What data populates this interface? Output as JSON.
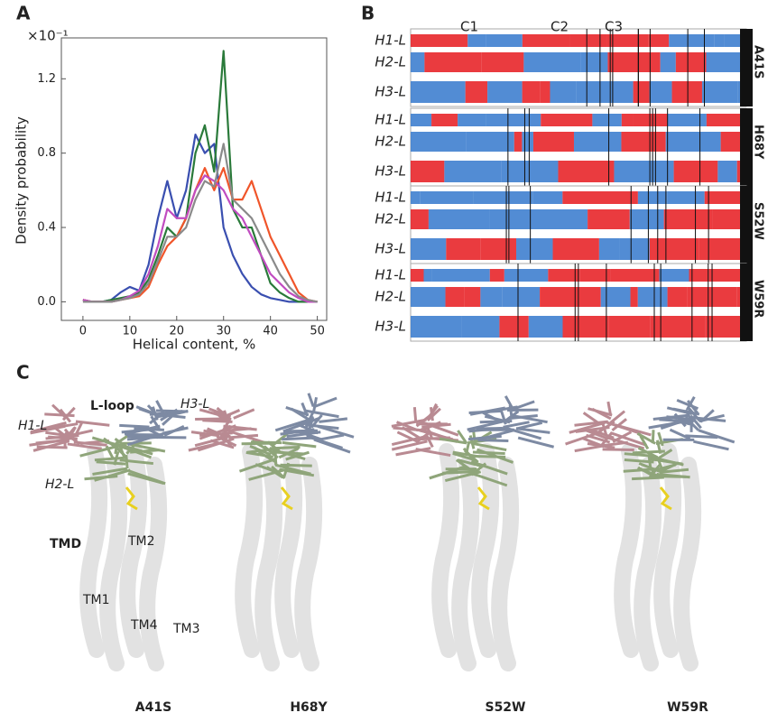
{
  "panel_labels": {
    "a": "A",
    "b": "B",
    "c": "C"
  },
  "chart_data": {
    "type": "line",
    "xlabel": "Helical content, %",
    "ylabel": "Density probability",
    "multiplier": "×10⁻¹",
    "x": [
      0,
      2,
      4,
      6,
      8,
      10,
      12,
      14,
      16,
      18,
      20,
      22,
      24,
      26,
      28,
      30,
      32,
      34,
      36,
      38,
      40,
      42,
      44,
      46,
      48,
      50
    ],
    "xlim": [
      -4.6,
      52
    ],
    "xticks": [
      0,
      10,
      20,
      30,
      40,
      50
    ],
    "ylim": [
      -0.1,
      1.42
    ],
    "yticks": [
      {
        "value": 0,
        "label": "0.0"
      },
      0.4,
      0.8,
      1.2
    ],
    "series": [
      {
        "color": "#3a4fb0",
        "values": [
          0.01,
          0,
          0,
          0.01,
          0.05,
          0.08,
          0.06,
          0.2,
          0.45,
          0.65,
          0.45,
          0.6,
          0.9,
          0.8,
          0.85,
          0.4,
          0.25,
          0.15,
          0.08,
          0.04,
          0.02,
          0.01,
          0,
          0,
          0,
          0
        ]
      },
      {
        "color": "#2a7a3a",
        "values": [
          0.01,
          0,
          0,
          0.01,
          0.02,
          0.03,
          0.05,
          0.12,
          0.25,
          0.4,
          0.35,
          0.45,
          0.8,
          0.95,
          0.7,
          1.35,
          0.5,
          0.4,
          0.4,
          0.25,
          0.1,
          0.05,
          0.02,
          0,
          0,
          0
        ]
      },
      {
        "color": "#f0552a",
        "values": [
          0.01,
          0,
          0,
          0,
          0.01,
          0.02,
          0.03,
          0.08,
          0.2,
          0.3,
          0.35,
          0.45,
          0.6,
          0.72,
          0.6,
          0.72,
          0.55,
          0.55,
          0.65,
          0.5,
          0.35,
          0.25,
          0.15,
          0.05,
          0.01,
          0
        ]
      },
      {
        "color": "#c04cc0",
        "values": [
          0.01,
          0,
          0,
          0,
          0.01,
          0.03,
          0.06,
          0.15,
          0.3,
          0.5,
          0.45,
          0.45,
          0.6,
          0.68,
          0.65,
          0.6,
          0.5,
          0.45,
          0.35,
          0.25,
          0.15,
          0.1,
          0.05,
          0.02,
          0,
          0
        ]
      },
      {
        "color": "#8a8a8a",
        "values": [
          0,
          0,
          0,
          0,
          0.01,
          0.02,
          0.04,
          0.1,
          0.22,
          0.35,
          0.35,
          0.4,
          0.55,
          0.65,
          0.62,
          0.85,
          0.55,
          0.5,
          0.45,
          0.35,
          0.25,
          0.15,
          0.08,
          0.03,
          0.01,
          0
        ]
      }
    ]
  },
  "panel_b": {
    "clusters": [
      "C1",
      "C2",
      "C3"
    ],
    "blocks": [
      {
        "mutant": "A41S",
        "rows": [
          "H1-L",
          "H2-L",
          "H3-L"
        ]
      },
      {
        "mutant": "H68Y",
        "rows": [
          "H1-L",
          "H2-L",
          "H3-L"
        ]
      },
      {
        "mutant": "S52W",
        "rows": [
          "H1-L",
          "H2-L",
          "H3-L"
        ]
      },
      {
        "mutant": "W59R",
        "rows": [
          "H1-L",
          "H2-L",
          "H3-L"
        ]
      }
    ]
  },
  "panel_c": {
    "l_loop": "L-loop",
    "h1": "H1-L",
    "h2": "H2-L",
    "h3": "H3-L",
    "tmd": "TMD",
    "tm1": "TM1",
    "tm2": "TM2",
    "tm3": "TM3",
    "tm4": "TM4",
    "mutants": [
      "A41S",
      "H68Y",
      "S52W",
      "W59R"
    ]
  }
}
